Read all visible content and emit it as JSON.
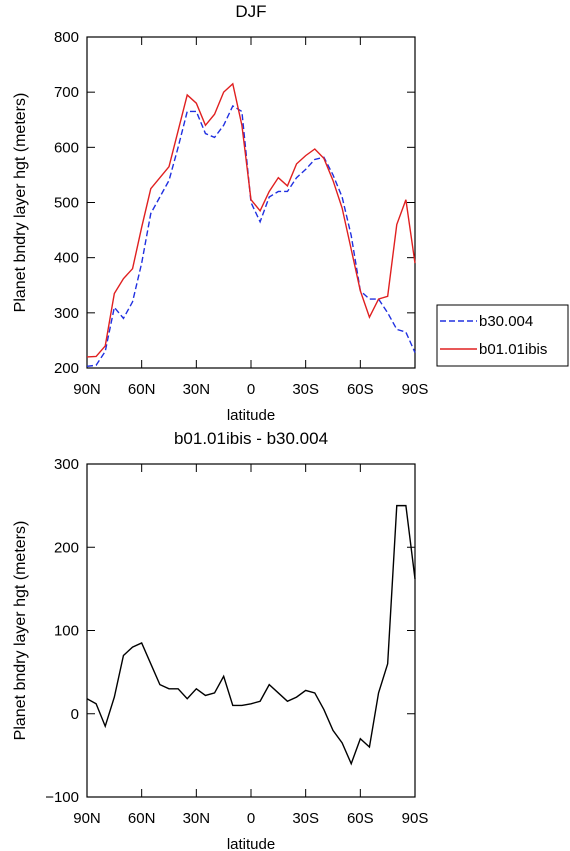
{
  "chart_data": [
    {
      "type": "line",
      "title": "DJF",
      "xlabel": "latitude",
      "ylabel": "Planet bndry layer hgt (meters)",
      "x": [
        90,
        85,
        80,
        75,
        70,
        65,
        60,
        55,
        50,
        45,
        40,
        35,
        30,
        25,
        20,
        15,
        10,
        5,
        0,
        -5,
        -10,
        -15,
        -20,
        -25,
        -30,
        -35,
        -40,
        -45,
        -50,
        -55,
        -60,
        -65,
        -70,
        -75,
        -80,
        -85,
        -90
      ],
      "series": [
        {
          "name": "b30.004",
          "color": "#2030e0",
          "linestyle": "dashed",
          "values": [
            203,
            205,
            230,
            310,
            290,
            320,
            390,
            480,
            510,
            540,
            600,
            665,
            665,
            625,
            618,
            640,
            675,
            665,
            500,
            465,
            510,
            520,
            520,
            545,
            560,
            578,
            582,
            550,
            510,
            440,
            340,
            325,
            325,
            300,
            270,
            265,
            228
          ]
        },
        {
          "name": "b01.01ibis",
          "color": "#e02020",
          "linestyle": "solid",
          "values": [
            220,
            221,
            240,
            335,
            362,
            380,
            455,
            525,
            545,
            565,
            630,
            695,
            680,
            640,
            660,
            700,
            715,
            640,
            505,
            485,
            520,
            545,
            530,
            570,
            585,
            597,
            580,
            540,
            490,
            415,
            340,
            292,
            325,
            330,
            460,
            505,
            390
          ]
        }
      ],
      "xlim": [
        90,
        -90
      ],
      "xticks": [
        {
          "value": 90,
          "label": "90N"
        },
        {
          "value": 60,
          "label": "60N"
        },
        {
          "value": 30,
          "label": "30N"
        },
        0,
        {
          "value": -30,
          "label": "30S"
        },
        {
          "value": -60,
          "label": "60S"
        },
        {
          "value": -90,
          "label": "90S"
        }
      ],
      "ylim": [
        200,
        800
      ],
      "yticks": [
        200,
        300,
        400,
        500,
        600,
        700,
        800
      ],
      "legend": "right"
    },
    {
      "type": "line",
      "title": "b01.01ibis - b30.004",
      "xlabel": "latitude",
      "ylabel": "Planet bndry layer hgt (meters)",
      "x": [
        90,
        85,
        80,
        75,
        70,
        65,
        60,
        55,
        50,
        45,
        40,
        35,
        30,
        25,
        20,
        15,
        10,
        5,
        0,
        -5,
        -10,
        -15,
        -20,
        -25,
        -30,
        -35,
        -40,
        -45,
        -50,
        -55,
        -60,
        -65,
        -70,
        -75,
        -80,
        -85,
        -90
      ],
      "series": [
        {
          "color": "#000000",
          "linestyle": "solid",
          "values": [
            18,
            12,
            -15,
            20,
            70,
            80,
            85,
            60,
            35,
            30,
            30,
            18,
            30,
            22,
            25,
            45,
            10,
            10,
            12,
            15,
            35,
            25,
            15,
            20,
            28,
            25,
            5,
            -20,
            -35,
            -60,
            -30,
            -40,
            25,
            60,
            250,
            250,
            162
          ]
        }
      ],
      "xlim": [
        90,
        -90
      ],
      "xticks": [
        {
          "value": 90,
          "label": "90N"
        },
        {
          "value": 60,
          "label": "60N"
        },
        {
          "value": 30,
          "label": "30N"
        },
        0,
        {
          "value": -30,
          "label": "30S"
        },
        {
          "value": -60,
          "label": "60S"
        },
        {
          "value": -90,
          "label": "90S"
        }
      ],
      "ylim": [
        -100,
        300
      ],
      "yticks": [
        {
          "value": -100,
          "label": "−100"
        },
        0,
        100,
        200,
        300
      ]
    }
  ]
}
